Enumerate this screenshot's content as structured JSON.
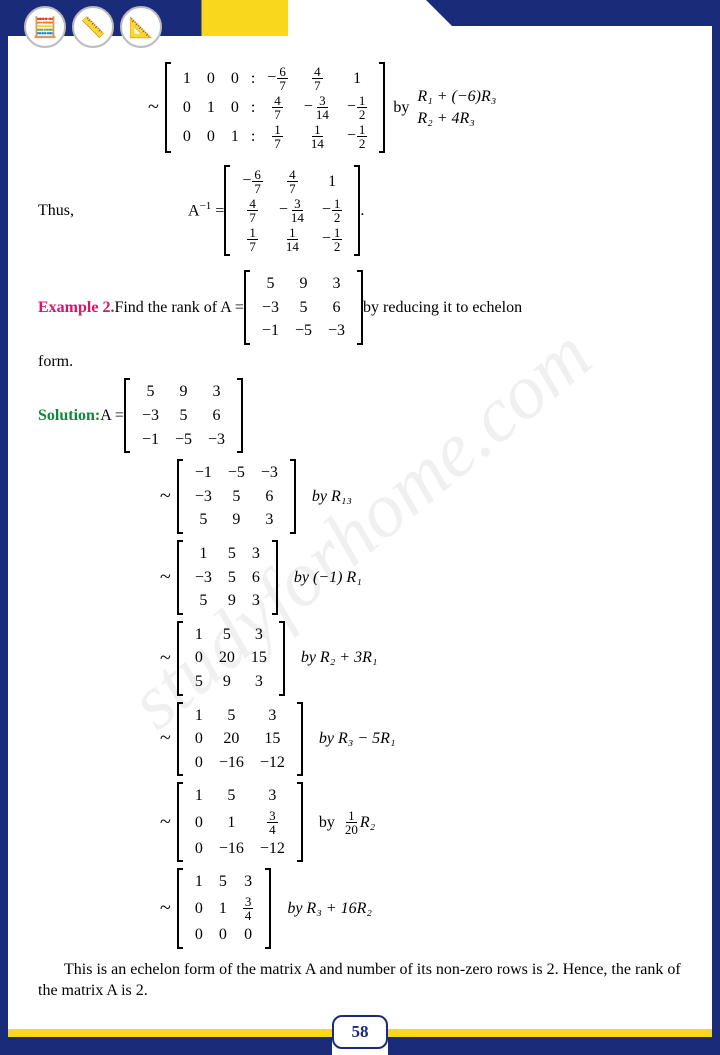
{
  "page_number": "58",
  "watermark": "studyforhome.com",
  "colors": {
    "brand_blue": "#1a2b7a",
    "brand_yellow": "#f9d71c",
    "example": "#d6156b",
    "solution": "#0a8a3a"
  },
  "step1": {
    "left_identity": [
      [
        "1",
        "0",
        "0"
      ],
      [
        "0",
        "1",
        "0"
      ],
      [
        "0",
        "0",
        "1"
      ]
    ],
    "right": [
      [
        "−6/7",
        "4/7",
        "1"
      ],
      [
        "4/7",
        "−3/14",
        "−1/2"
      ],
      [
        "1/7",
        "1/14",
        "−1/2"
      ]
    ],
    "by_label": "by",
    "ops": [
      "R₁ + (−6)R₃",
      "R₂ + 4R₃"
    ]
  },
  "thus": {
    "label": "Thus,",
    "lhs": "A⁻¹ =",
    "matrix": [
      [
        "−6/7",
        "4/7",
        "1"
      ],
      [
        "4/7",
        "−3/14",
        "−1/2"
      ],
      [
        "1/7",
        "1/14",
        "−1/2"
      ]
    ],
    "period": "."
  },
  "example2": {
    "label": "Example 2.",
    "text_before": " Find the rank of A = ",
    "matrix": [
      [
        "5",
        "9",
        "3"
      ],
      [
        "−3",
        "5",
        "6"
      ],
      [
        "−1",
        "−5",
        "−3"
      ]
    ],
    "text_after": " by reducing it to echelon",
    "text_after2": "form."
  },
  "solution": {
    "label": "Solution:",
    "lhs": "  A = ",
    "matrix0": [
      [
        "5",
        "9",
        "3"
      ],
      [
        "−3",
        "5",
        "6"
      ],
      [
        "−1",
        "−5",
        "−3"
      ]
    ],
    "steps": [
      {
        "m": [
          [
            "−1",
            "−5",
            "−3"
          ],
          [
            "−3",
            "5",
            "6"
          ],
          [
            "5",
            "9",
            "3"
          ]
        ],
        "by": "by R₁₃"
      },
      {
        "m": [
          [
            "1",
            "5",
            "3"
          ],
          [
            "−3",
            "5",
            "6"
          ],
          [
            "5",
            "9",
            "3"
          ]
        ],
        "by": "by  (−1) R₁"
      },
      {
        "m": [
          [
            "1",
            "5",
            "3"
          ],
          [
            "0",
            "20",
            "15"
          ],
          [
            "5",
            "9",
            "3"
          ]
        ],
        "by": "by  R₂ + 3R₁"
      },
      {
        "m": [
          [
            "1",
            "5",
            "3"
          ],
          [
            "0",
            "20",
            "15"
          ],
          [
            "0",
            "−16",
            "−12"
          ]
        ],
        "by": "by  R₃ − 5R₁"
      },
      {
        "m": [
          [
            "1",
            "5",
            "3"
          ],
          [
            "0",
            "1",
            "3/4"
          ],
          [
            "0",
            "−16",
            "−12"
          ]
        ],
        "by": "by  1/20 R₂",
        "by_frac": true
      },
      {
        "m": [
          [
            "1",
            "5",
            "3"
          ],
          [
            "0",
            "1",
            "3/4"
          ],
          [
            "0",
            "0",
            "0"
          ]
        ],
        "by": "by R₃ + 16R₂"
      }
    ]
  },
  "conclusion": "This is an echelon form of the matrix A and number of its non-zero rows is 2. Hence, the rank of the matrix A is 2.",
  "by_word": "by"
}
